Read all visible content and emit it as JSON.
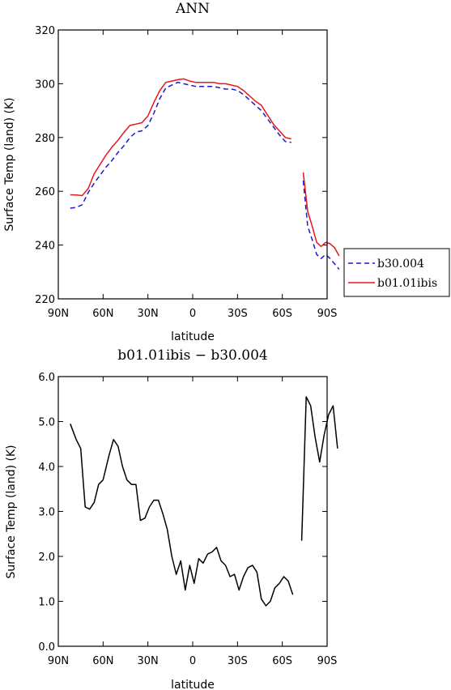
{
  "chart_data": [
    {
      "type": "line",
      "title": "ANN",
      "xlabel": "latitude",
      "ylabel": "Surface Temp (land) (K)",
      "xlim": [
        90,
        -90
      ],
      "ylim": [
        220,
        320
      ],
      "xticks": [
        90,
        60,
        30,
        0,
        -30,
        -60,
        -90
      ],
      "xtick_labels": [
        "90N",
        "60N",
        "30N",
        "0",
        "30S",
        "60S",
        "90S"
      ],
      "yticks": [
        220,
        240,
        260,
        280,
        300,
        320
      ],
      "ytick_labels": [
        "220",
        "240",
        "260",
        "280",
        "300",
        "320"
      ],
      "legend_position": "right",
      "series": [
        {
          "name": "b30.004",
          "color": "#1a1acc",
          "dash": "dashed",
          "segments": [
            [
              [
                82,
                253.7
              ],
              [
                78,
                254.0
              ],
              [
                74,
                255.0
              ],
              [
                70,
                259.5
              ],
              [
                66,
                263.0
              ],
              [
                62,
                266.0
              ],
              [
                58,
                269.0
              ],
              [
                54,
                271.5
              ],
              [
                50,
                274.5
              ],
              [
                46,
                277.0
              ],
              [
                42,
                280.0
              ],
              [
                38,
                282.0
              ],
              [
                34,
                282.5
              ],
              [
                30,
                284.5
              ],
              [
                26,
                289.0
              ],
              [
                22,
                294.5
              ],
              [
                18,
                298.5
              ],
              [
                14,
                299.5
              ],
              [
                10,
                300.5
              ],
              [
                6,
                300.0
              ],
              [
                2,
                299.5
              ],
              [
                -2,
                299.0
              ],
              [
                -6,
                299.0
              ],
              [
                -10,
                299.0
              ],
              [
                -14,
                299.0
              ],
              [
                -18,
                298.5
              ],
              [
                -22,
                298.0
              ],
              [
                -26,
                298.0
              ],
              [
                -30,
                297.5
              ],
              [
                -34,
                296.0
              ],
              [
                -38,
                294.0
              ],
              [
                -42,
                292.0
              ],
              [
                -46,
                290.0
              ],
              [
                -50,
                287.0
              ],
              [
                -54,
                284.0
              ],
              [
                -58,
                281.0
              ],
              [
                -62,
                278.5
              ],
              [
                -66,
                278.2
              ]
            ],
            [
              [
                -74,
                264.0
              ],
              [
                -77,
                247.0
              ],
              [
                -80,
                242.0
              ],
              [
                -83,
                236.5
              ],
              [
                -86,
                235.0
              ],
              [
                -89,
                236.5
              ],
              [
                -92,
                235.0
              ],
              [
                -95,
                233.0
              ],
              [
                -98,
                231.0
              ]
            ]
          ]
        },
        {
          "name": "b01.01ibis",
          "color": "#e8141e",
          "dash": "solid",
          "segments": [
            [
              [
                82,
                258.7
              ],
              [
                78,
                258.6
              ],
              [
                74,
                258.4
              ],
              [
                70,
                261.0
              ],
              [
                66,
                266.5
              ],
              [
                62,
                270.0
              ],
              [
                58,
                273.5
              ],
              [
                54,
                276.5
              ],
              [
                50,
                279.0
              ],
              [
                46,
                282.0
              ],
              [
                42,
                284.5
              ],
              [
                38,
                285.0
              ],
              [
                34,
                285.5
              ],
              [
                30,
                288.0
              ],
              [
                26,
                293.0
              ],
              [
                22,
                297.5
              ],
              [
                18,
                300.5
              ],
              [
                14,
                301.0
              ],
              [
                10,
                301.5
              ],
              [
                6,
                301.8
              ],
              [
                2,
                301.0
              ],
              [
                -2,
                300.5
              ],
              [
                -6,
                300.5
              ],
              [
                -10,
                300.5
              ],
              [
                -14,
                300.5
              ],
              [
                -18,
                300.0
              ],
              [
                -22,
                300.0
              ],
              [
                -26,
                299.5
              ],
              [
                -30,
                299.0
              ],
              [
                -34,
                297.5
              ],
              [
                -38,
                295.5
              ],
              [
                -42,
                293.5
              ],
              [
                -46,
                292.0
              ],
              [
                -50,
                288.5
              ],
              [
                -54,
                285.0
              ],
              [
                -58,
                282.5
              ],
              [
                -62,
                280.0
              ],
              [
                -66,
                279.5
              ]
            ],
            [
              [
                -74,
                267.0
              ],
              [
                -77,
                252.5
              ],
              [
                -80,
                247.0
              ],
              [
                -83,
                241.0
              ],
              [
                -86,
                239.5
              ],
              [
                -89,
                241.0
              ],
              [
                -92,
                240.5
              ],
              [
                -95,
                239.0
              ],
              [
                -98,
                236.0
              ]
            ]
          ]
        }
      ]
    },
    {
      "type": "line",
      "title": "b01.01ibis − b30.004",
      "xlabel": "latitude",
      "ylabel": "Surface Temp (land) (K)",
      "xlim": [
        90,
        -90
      ],
      "ylim": [
        0.0,
        6.0
      ],
      "xticks": [
        90,
        60,
        30,
        0,
        -30,
        -60,
        -90
      ],
      "xtick_labels": [
        "90N",
        "60N",
        "30N",
        "0",
        "30S",
        "60S",
        "90S"
      ],
      "yticks": [
        0,
        1,
        2,
        3,
        4,
        5,
        6
      ],
      "ytick_labels": [
        "0.0",
        "1.0",
        "2.0",
        "3.0",
        "4.0",
        "5.0",
        "6.0"
      ],
      "series": [
        {
          "color": "#000000",
          "dash": "solid",
          "segments": [
            [
              [
                82,
                4.95
              ],
              [
                78,
                4.6
              ],
              [
                75,
                4.4
              ],
              [
                72,
                3.1
              ],
              [
                69,
                3.05
              ],
              [
                66,
                3.2
              ],
              [
                63,
                3.6
              ],
              [
                60,
                3.7
              ],
              [
                56,
                4.25
              ],
              [
                53,
                4.6
              ],
              [
                50,
                4.45
              ],
              [
                47,
                4.0
              ],
              [
                44,
                3.7
              ],
              [
                41,
                3.6
              ],
              [
                38,
                3.6
              ],
              [
                35,
                2.8
              ],
              [
                32,
                2.85
              ],
              [
                29,
                3.1
              ],
              [
                26,
                3.25
              ],
              [
                23,
                3.25
              ],
              [
                20,
                2.95
              ],
              [
                17,
                2.6
              ],
              [
                14,
                2.0
              ],
              [
                11,
                1.6
              ],
              [
                8,
                1.9
              ],
              [
                5,
                1.25
              ],
              [
                2,
                1.8
              ],
              [
                -1,
                1.4
              ],
              [
                -4,
                1.95
              ],
              [
                -7,
                1.85
              ],
              [
                -10,
                2.05
              ],
              [
                -13,
                2.1
              ],
              [
                -16,
                2.2
              ],
              [
                -19,
                1.9
              ],
              [
                -22,
                1.8
              ],
              [
                -25,
                1.55
              ],
              [
                -28,
                1.6
              ],
              [
                -31,
                1.25
              ],
              [
                -34,
                1.55
              ],
              [
                -37,
                1.75
              ],
              [
                -40,
                1.8
              ],
              [
                -43,
                1.65
              ],
              [
                -46,
                1.05
              ],
              [
                -49,
                0.9
              ],
              [
                -52,
                1.0
              ],
              [
                -55,
                1.3
              ],
              [
                -58,
                1.4
              ],
              [
                -61,
                1.55
              ],
              [
                -64,
                1.45
              ],
              [
                -67,
                1.15
              ]
            ],
            [
              [
                -73,
                2.35
              ],
              [
                -76,
                5.55
              ],
              [
                -79,
                5.35
              ],
              [
                -82,
                4.65
              ],
              [
                -85,
                4.1
              ],
              [
                -88,
                4.7
              ],
              [
                -91,
                5.15
              ],
              [
                -94,
                5.35
              ],
              [
                -97,
                4.4
              ]
            ]
          ]
        }
      ]
    }
  ]
}
